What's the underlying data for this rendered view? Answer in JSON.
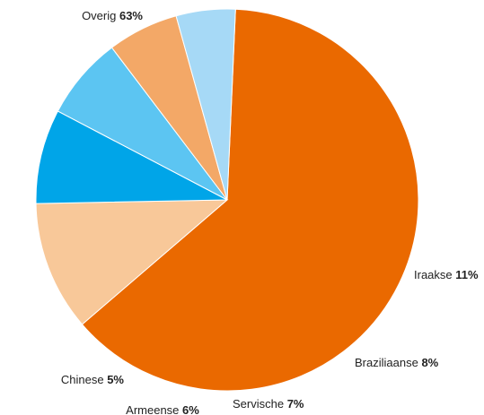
{
  "chart_data": {
    "type": "pie",
    "title": "",
    "slices": [
      {
        "label": "Overig",
        "value": 63,
        "display": "63%",
        "color": "#EA6900"
      },
      {
        "label": "Iraakse",
        "value": 11,
        "display": "11%",
        "color": "#F8C899"
      },
      {
        "label": "Braziliaanse",
        "value": 8,
        "display": "8%",
        "color": "#00A5E8"
      },
      {
        "label": "Servische",
        "value": 7,
        "display": "7%",
        "color": "#5CC5F2"
      },
      {
        "label": "Armeense",
        "value": 6,
        "display": "6%",
        "color": "#F3A867"
      },
      {
        "label": "Chinese",
        "value": 5,
        "display": "5%",
        "color": "#A6D9F6"
      }
    ],
    "start_angle_deg": 2.5,
    "direction": "clockwise",
    "legend": "none",
    "labels": "outside"
  }
}
